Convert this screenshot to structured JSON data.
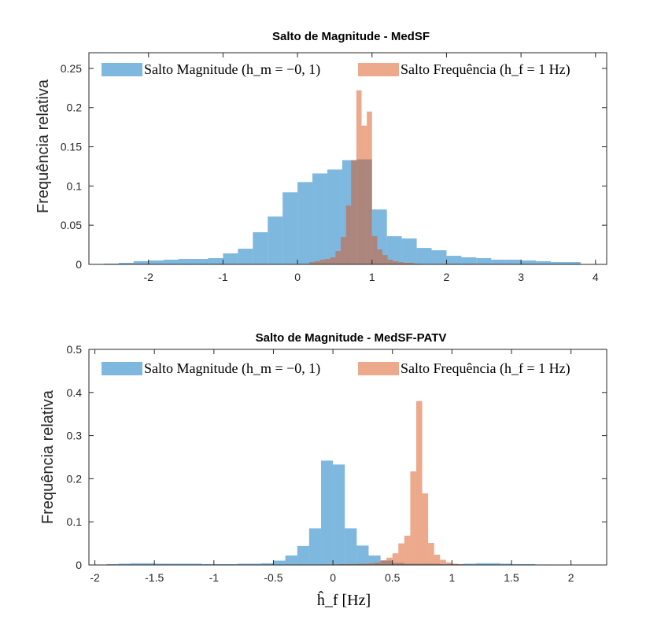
{
  "colors": {
    "magnitude": "#0072BD",
    "frequency": "#D95319",
    "axis": "#262626",
    "face_alpha": 0.5
  },
  "chart_data": [
    {
      "type": "bar",
      "title": "Salto de Magnitude - MedSF",
      "xlabel": "",
      "ylabel": "Frequência relativa",
      "xlim": [
        -2.8,
        4.15
      ],
      "ylim": [
        0,
        0.27
      ],
      "xticks": [
        -2,
        -1,
        0,
        1,
        2,
        3,
        4
      ],
      "xtick_labels": [
        "-2",
        "-1",
        "0",
        "1",
        "2",
        "3",
        "4"
      ],
      "yticks": [
        0,
        0.05,
        0.1,
        0.15,
        0.2,
        0.25
      ],
      "ytick_labels": [
        "0",
        "0.05",
        "0.1",
        "0.15",
        "0.2",
        "0.25"
      ],
      "grid": false,
      "legend": "top",
      "series": [
        {
          "name": "Salto Magnitude ($h_m = -0,1$)",
          "legend_text": "Salto Magnitude (h_m = −0, 1)",
          "bin_width": 0.2,
          "bin_start": -2.6,
          "values": [
            0.001,
            0.002,
            0.004,
            0.005,
            0.006,
            0.007,
            0.007,
            0.008,
            0.014,
            0.02,
            0.041,
            0.061,
            0.092,
            0.105,
            0.116,
            0.121,
            0.133,
            0.134,
            0.07,
            0.036,
            0.033,
            0.021,
            0.018,
            0.011,
            0.009,
            0.008,
            0.006,
            0.006,
            0.005,
            0.004,
            0.003,
            0.003
          ]
        },
        {
          "name": "Salto Frequência ($h_f = 1$ Hz)",
          "legend_text": "Salto Frequência (h_f = 1 Hz)",
          "bin_width": 0.07,
          "bin_start": 0.16,
          "values": [
            0.003,
            0.004,
            0.006,
            0.007,
            0.009,
            0.017,
            0.035,
            0.075,
            0.133,
            0.222,
            0.177,
            0.195,
            0.036,
            0.019,
            0.012,
            0.006,
            0.004,
            0.003,
            0.002,
            0.002,
            0.001
          ]
        }
      ]
    },
    {
      "type": "bar",
      "title": "Salto de Magnitude - MedSF-PATV",
      "xlabel": "ĥ_f [Hz]",
      "ylabel": "Frequência relativa",
      "xlim": [
        -2.05,
        2.3
      ],
      "ylim": [
        0,
        0.5
      ],
      "xticks": [
        -2,
        -1.5,
        -1,
        -0.5,
        0,
        0.5,
        1,
        1.5,
        2
      ],
      "xtick_labels": [
        "-2",
        "-1.5",
        "-1",
        "-0.5",
        "0",
        "0.5",
        "1",
        "1.5",
        "2"
      ],
      "yticks": [
        0,
        0.1,
        0.2,
        0.3,
        0.4,
        0.5
      ],
      "ytick_labels": [
        "0",
        "0.1",
        "0.2",
        "0.3",
        "0.4",
        "0.5"
      ],
      "grid": false,
      "legend": "top",
      "series": [
        {
          "name": "Salto Magnitude ($h_m = -0,1$)",
          "legend_text": "Salto Magnitude (h_m = −0, 1)",
          "bin_width": 0.1,
          "bin_start": -1.9,
          "values": [
            0.002,
            0.003,
            0.004,
            0.004,
            0.003,
            0.003,
            0.003,
            0.003,
            0.002,
            0.002,
            0.002,
            0.003,
            0.003,
            0.004,
            0.01,
            0.022,
            0.044,
            0.085,
            0.242,
            0.233,
            0.085,
            0.045,
            0.022,
            0.01,
            0.005,
            0.003,
            0.003,
            0.003,
            0.002,
            0.002,
            0.003,
            0.004,
            0.004,
            0.003,
            0.002,
            0.002,
            0.001
          ]
        },
        {
          "name": "Salto Frequência ($h_f = 1$ Hz)",
          "legend_text": "Salto Frequência (h_f = 1 Hz)",
          "bin_width": 0.05,
          "bin_start": -0.1,
          "values": [
            0.001,
            0.001,
            0.001,
            0.002,
            0.002,
            0.002,
            0.003,
            0.003,
            0.004,
            0.006,
            0.011,
            0.017,
            0.027,
            0.05,
            0.068,
            0.217,
            0.38,
            0.166,
            0.051,
            0.024,
            0.012,
            0.006,
            0.003,
            0.002,
            0.001
          ]
        }
      ]
    }
  ]
}
